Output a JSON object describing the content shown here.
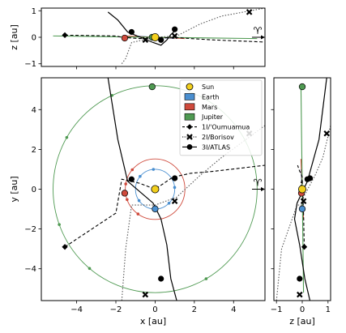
{
  "chart_data": {
    "type": "scatter",
    "reference_symbol": "♈",
    "panels": {
      "top": {
        "xlabel": "",
        "ylabel": "z [au]",
        "xlim": [
          -5.8,
          5.6
        ],
        "ylim": [
          -1.1,
          1.1
        ],
        "yticks": [
          -1,
          0,
          1
        ]
      },
      "main": {
        "xlabel": "x [au]",
        "ylabel": "y [au]",
        "xlim": [
          -5.8,
          5.6
        ],
        "ylim": [
          -5.6,
          5.6
        ],
        "xticks": [
          -4,
          -2,
          0,
          2,
          4
        ],
        "yticks": [
          -4,
          -2,
          0,
          2,
          4
        ]
      },
      "side": {
        "xlabel": "z [au]",
        "ylabel": "",
        "xlim": [
          -1.1,
          1.1
        ],
        "ylim": [
          -5.6,
          5.6
        ],
        "xticks": [
          -1,
          0,
          1
        ]
      }
    },
    "legend": {
      "placement": "upper right",
      "entries": [
        {
          "label": "Sun",
          "marker": "circle",
          "color": "#f2cf1d"
        },
        {
          "label": "Earth",
          "marker": "patch",
          "color": "#4a8fd0"
        },
        {
          "label": "Mars",
          "marker": "patch",
          "color": "#cf4a3c"
        },
        {
          "label": "Jupiter",
          "marker": "patch",
          "color": "#4f9a52"
        },
        {
          "label": "1I/'Oumuamua",
          "marker": "diamond",
          "line": "dashed",
          "color": "#000000"
        },
        {
          "label": "2I/Borisov",
          "marker": "x",
          "line": "dotted",
          "color": "#000000"
        },
        {
          "label": "3I/ATLAS",
          "marker": "circle",
          "line": "solid",
          "color": "#000000"
        }
      ]
    },
    "orbits": [
      {
        "name": "Earth",
        "radius": 1.0,
        "color": "#4a8fd0",
        "marker_angles_deg": [
          5,
          95,
          140,
          215,
          315
        ],
        "current": [
          0.0,
          -0.99,
          0.0
        ]
      },
      {
        "name": "Mars",
        "radius": 1.52,
        "color": "#cf4a3c",
        "marker_angles_deg": [
          140,
          170,
          200,
          235
        ],
        "current": [
          -1.55,
          -0.2,
          -0.03
        ]
      },
      {
        "name": "Jupiter",
        "radius": 5.2,
        "color": "#4f9a52",
        "marker_angles_deg": [
          115,
          150,
          200,
          230,
          300
        ],
        "current": [
          -0.15,
          5.15,
          0.0
        ]
      }
    ],
    "sun": [
      0.0,
      0.0,
      0.0
    ],
    "trajectories": [
      {
        "name": "1I/'Oumuamua",
        "line": "dashed",
        "marker": "diamond",
        "color": "#000000",
        "points": [
          [
            -4.6,
            -2.9,
            0.08
          ],
          [
            -2.0,
            -1.2,
            0.05
          ],
          [
            -1.7,
            0.5,
            0.0
          ],
          [
            -0.8,
            0.3,
            -0.05
          ],
          [
            0.0,
            0.0,
            -0.05
          ],
          [
            0.9,
            0.6,
            0.0
          ],
          [
            1.8,
            0.8,
            -0.05
          ],
          [
            3.0,
            0.9,
            -0.1
          ],
          [
            5.6,
            1.2,
            -0.18
          ]
        ],
        "current": [
          -4.6,
          -2.9,
          0.08
        ]
      },
      {
        "name": "2I/Borisov",
        "line": "dotted",
        "marker": "x",
        "color": "#000000",
        "points": [
          [
            -1.7,
            -5.6,
            -1.0
          ],
          [
            -1.5,
            -3.0,
            -0.8
          ],
          [
            -1.2,
            -0.8,
            -0.2
          ],
          [
            0.0,
            -0.8,
            0.0
          ],
          [
            1.1,
            -0.4,
            0.05
          ],
          [
            2.3,
            0.7,
            0.5
          ],
          [
            3.4,
            1.6,
            0.8
          ],
          [
            5.6,
            3.2,
            1.1
          ]
        ],
        "current_points": [
          [
            -0.5,
            -5.3,
            -0.1
          ],
          [
            1.0,
            -0.6,
            0.05
          ],
          [
            4.8,
            2.8,
            0.95
          ]
        ]
      },
      {
        "name": "3I/ATLAS",
        "line": "solid",
        "marker": "circle",
        "color": "#000000",
        "points": [
          [
            -2.4,
            5.6,
            0.95
          ],
          [
            -1.9,
            2.5,
            0.65
          ],
          [
            -1.4,
            0.4,
            0.2
          ],
          [
            -0.1,
            -0.7,
            -0.2
          ],
          [
            0.3,
            -1.5,
            -0.3
          ],
          [
            0.6,
            -2.8,
            -0.1
          ],
          [
            0.8,
            -4.5,
            0.1
          ],
          [
            1.1,
            -5.6,
            0.3
          ]
        ],
        "current_points": [
          [
            -1.2,
            0.5,
            0.2
          ],
          [
            1.0,
            0.55,
            0.3
          ],
          [
            0.3,
            -4.5,
            -0.1
          ]
        ]
      }
    ]
  }
}
